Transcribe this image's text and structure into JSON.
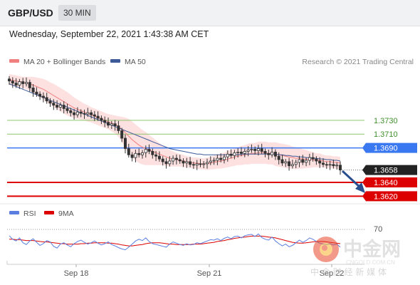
{
  "header": {
    "symbol": "GBP/USD",
    "timeframe": "30 MIN",
    "datetime": "Wednesday, September 22, 2021 1:43:38 AM CET"
  },
  "watermark": {
    "name": "中金网",
    "url": "CNGOLD.COM.CN",
    "tagline": "中 金 财 经 新 媒 体"
  },
  "colors": {
    "ma20": "#f08080",
    "ma50": "#3d5a99",
    "bands": "#fde0e0",
    "candle": "#333333",
    "resistance": "#3a78f2",
    "support": "#dd0000",
    "target": "#8dc66b",
    "current": "#222222",
    "arrow": "#2a4f8f",
    "rsi": "#5b7fe0",
    "rsi_ma": "#dd0000"
  },
  "chart_data": [
    {
      "type": "candlestick",
      "source": "Research © 2021 Trading Central",
      "legend": [
        {
          "name": "MA 20 + Bollinger Bands",
          "color": "#f08080"
        },
        {
          "name": "MA 50",
          "color": "#3d5a99"
        }
      ],
      "ylim": [
        1.3609,
        1.3797
      ],
      "x_ticks": [
        "Sep 18",
        "Sep 21",
        "Sep 22"
      ],
      "close": [
        1.3787,
        1.3784,
        1.3781,
        1.3786,
        1.3783,
        1.3785,
        1.3777,
        1.3771,
        1.3768,
        1.3765,
        1.3763,
        1.3758,
        1.3755,
        1.3752,
        1.3749,
        1.3752,
        1.3747,
        1.3744,
        1.3741,
        1.3738,
        1.3742,
        1.374,
        1.3739,
        1.3741,
        1.3738,
        1.3736,
        1.3733,
        1.373,
        1.3727,
        1.3723,
        1.3725,
        1.3722,
        1.3715,
        1.3704,
        1.3689,
        1.368,
        1.3676,
        1.3682,
        1.368,
        1.3683,
        1.3688,
        1.3685,
        1.368,
        1.3678,
        1.3674,
        1.367,
        1.3667,
        1.3671,
        1.3675,
        1.3673,
        1.3671,
        1.3668,
        1.367,
        1.3666,
        1.3665,
        1.3667,
        1.3666,
        1.3667,
        1.3669,
        1.3671,
        1.3672,
        1.3675,
        1.3673,
        1.3677,
        1.3681,
        1.3679,
        1.3683,
        1.3684,
        1.3682,
        1.3685,
        1.3687,
        1.3688,
        1.3686,
        1.3689,
        1.3685,
        1.3682,
        1.368,
        1.3684,
        1.3678,
        1.3673,
        1.3668,
        1.367,
        1.3664,
        1.3666,
        1.3669,
        1.3673,
        1.3669,
        1.3672,
        1.3676,
        1.3674,
        1.3671,
        1.3668,
        1.3666,
        1.3665,
        1.3666,
        1.3664,
        1.3665,
        1.3658
      ],
      "ma20": [
        1.3789,
        1.3788,
        1.3787,
        1.3786,
        1.3785,
        1.3784,
        1.3783,
        1.3781,
        1.3779,
        1.3777,
        1.3775,
        1.3772,
        1.3769,
        1.3766,
        1.3763,
        1.376,
        1.3757,
        1.3754,
        1.3751,
        1.3748,
        1.3746,
        1.3744,
        1.3742,
        1.374,
        1.3738,
        1.3736,
        1.3734,
        1.3732,
        1.373,
        1.3728,
        1.3726,
        1.3724,
        1.3721,
        1.3717,
        1.3712,
        1.3707,
        1.3702,
        1.3698,
        1.3694,
        1.3691,
        1.3689,
        1.3687,
        1.3685,
        1.3683,
        1.3681,
        1.3679,
        1.3677,
        1.3675,
        1.3674,
        1.3673,
        1.3672,
        1.3671,
        1.367,
        1.3669,
        1.3668,
        1.3668,
        1.3667,
        1.3667,
        1.3667,
        1.3668,
        1.3669,
        1.367,
        1.3671,
        1.3672,
        1.3674,
        1.3675,
        1.3677,
        1.3678,
        1.3679,
        1.368,
        1.3681,
        1.3682,
        1.3682,
        1.3683,
        1.3683,
        1.3683,
        1.3682,
        1.3682,
        1.3681,
        1.368,
        1.3679,
        1.3678,
        1.3677,
        1.3676,
        1.3675,
        1.3675,
        1.3674,
        1.3674,
        1.3673,
        1.3673,
        1.3672,
        1.3672,
        1.3671,
        1.367,
        1.367,
        1.3669,
        1.3669,
        1.3668
      ],
      "ma50": [
        1.3783,
        1.3781,
        1.3779,
        1.3777,
        1.3775,
        1.3773,
        1.3771,
        1.3769,
        1.3767,
        1.3765,
        1.3763,
        1.3761,
        1.3759,
        1.3757,
        1.3755,
        1.3753,
        1.3751,
        1.3749,
        1.3747,
        1.3745,
        1.3743,
        1.3741,
        1.3739,
        1.3737,
        1.3735,
        1.3733,
        1.3731,
        1.3729,
        1.3727,
        1.3725,
        1.3723,
        1.3721,
        1.3719,
        1.3717,
        1.3715,
        1.3713,
        1.3711,
        1.3709,
        1.3707,
        1.3705,
        1.3703,
        1.3701,
        1.3699,
        1.3697,
        1.3695,
        1.3693,
        1.3691,
        1.3689,
        1.3688,
        1.3687,
        1.3686,
        1.3685,
        1.3684,
        1.3683,
        1.3682,
        1.3681,
        1.3681,
        1.368,
        1.368,
        1.368,
        1.368,
        1.368,
        1.368,
        1.368,
        1.368,
        1.368,
        1.368,
        1.368,
        1.3681,
        1.3681,
        1.3681,
        1.3681,
        1.3681,
        1.3681,
        1.3681,
        1.3681,
        1.3681,
        1.3681,
        1.3681,
        1.368,
        1.368,
        1.3679,
        1.3679,
        1.3678,
        1.3678,
        1.3677,
        1.3677,
        1.3676,
        1.3676,
        1.3675,
        1.3675,
        1.3674,
        1.3674,
        1.3673,
        1.3673,
        1.3672,
        1.3672,
        1.3671
      ],
      "band_width": [
        0.0008,
        0.0008,
        0.0008,
        0.0008,
        0.0008,
        0.0009,
        0.001,
        0.0012,
        0.0013,
        0.0014,
        0.0015,
        0.0016,
        0.0016,
        0.0017,
        0.0017,
        0.0017,
        0.0017,
        0.0017,
        0.0016,
        0.0015,
        0.0014,
        0.0013,
        0.0012,
        0.0012,
        0.0011,
        0.0011,
        0.0011,
        0.0011,
        0.0011,
        0.0011,
        0.0012,
        0.0013,
        0.0015,
        0.0018,
        0.0022,
        0.0025,
        0.0026,
        0.0026,
        0.0026,
        0.0025,
        0.0024,
        0.0022,
        0.002,
        0.0018,
        0.0016,
        0.0014,
        0.0013,
        0.0012,
        0.0011,
        0.001,
        0.0009,
        0.0009,
        0.0008,
        0.0008,
        0.0008,
        0.0008,
        0.0008,
        0.0008,
        0.0009,
        0.0009,
        0.001,
        0.001,
        0.0011,
        0.0011,
        0.0012,
        0.0012,
        0.0013,
        0.0013,
        0.0014,
        0.0014,
        0.0015,
        0.0015,
        0.0015,
        0.0016,
        0.0016,
        0.0016,
        0.0016,
        0.0016,
        0.0017,
        0.0017,
        0.0017,
        0.0017,
        0.0017,
        0.0016,
        0.0016,
        0.0015,
        0.0014,
        0.0013,
        0.0012,
        0.0011,
        0.001,
        0.001,
        0.0009,
        0.0009,
        0.0009,
        0.0009,
        0.0009,
        0.0009
      ],
      "levels": [
        {
          "value": 1.373,
          "label": "1.3730",
          "kind": "target"
        },
        {
          "value": 1.371,
          "label": "1.3710",
          "kind": "target"
        },
        {
          "value": 1.369,
          "label": "1.3690",
          "kind": "resistance"
        },
        {
          "value": 1.3658,
          "label": "1.3658",
          "kind": "current"
        },
        {
          "value": 1.364,
          "label": "1.3640",
          "kind": "support"
        },
        {
          "value": 1.362,
          "label": "1.3620",
          "kind": "support"
        }
      ]
    },
    {
      "type": "line",
      "legend": [
        {
          "name": "RSI",
          "color": "#5b7fe0"
        },
        {
          "name": "9MA",
          "color": "#dd0000"
        }
      ],
      "y_ticks": [
        70
      ],
      "ylim": [
        0,
        100
      ],
      "rsi": [
        60,
        52,
        48,
        55,
        44,
        40,
        48,
        53,
        45,
        38,
        42,
        49,
        46,
        36,
        32,
        41,
        44,
        39,
        35,
        42,
        47,
        50,
        45,
        41,
        44,
        48,
        43,
        39,
        42,
        46,
        40,
        37,
        33,
        30,
        28,
        34,
        41,
        48,
        52,
        49,
        55,
        47,
        42,
        40,
        38,
        36,
        34,
        41,
        46,
        43,
        40,
        38,
        42,
        39,
        40,
        44,
        42,
        45,
        48,
        51,
        50,
        53,
        49,
        54,
        57,
        53,
        58,
        59,
        55,
        60,
        62,
        63,
        58,
        64,
        56,
        52,
        50,
        57,
        48,
        42,
        37,
        41,
        35,
        38,
        44,
        50,
        45,
        49,
        55,
        52,
        47,
        43,
        41,
        40,
        42,
        39,
        41,
        34
      ],
      "ma9": [
        52,
        52,
        51,
        51,
        50,
        49,
        49,
        49,
        48,
        47,
        46,
        46,
        45,
        44,
        43,
        42,
        42,
        41,
        41,
        41,
        41,
        42,
        42,
        43,
        43,
        44,
        44,
        44,
        44,
        43,
        43,
        42,
        41,
        39,
        38,
        37,
        37,
        38,
        39,
        40,
        42,
        43,
        44,
        44,
        44,
        43,
        42,
        41,
        41,
        40,
        40,
        40,
        40,
        40,
        41,
        41,
        41,
        42,
        43,
        44,
        45,
        47,
        48,
        49,
        51,
        52,
        54,
        55,
        56,
        57,
        58,
        59,
        59,
        59,
        59,
        58,
        57,
        56,
        55,
        53,
        51,
        49,
        47,
        45,
        44,
        43,
        43,
        44,
        45,
        46,
        47,
        47,
        47,
        46,
        45,
        44,
        43,
        42
      ]
    }
  ]
}
